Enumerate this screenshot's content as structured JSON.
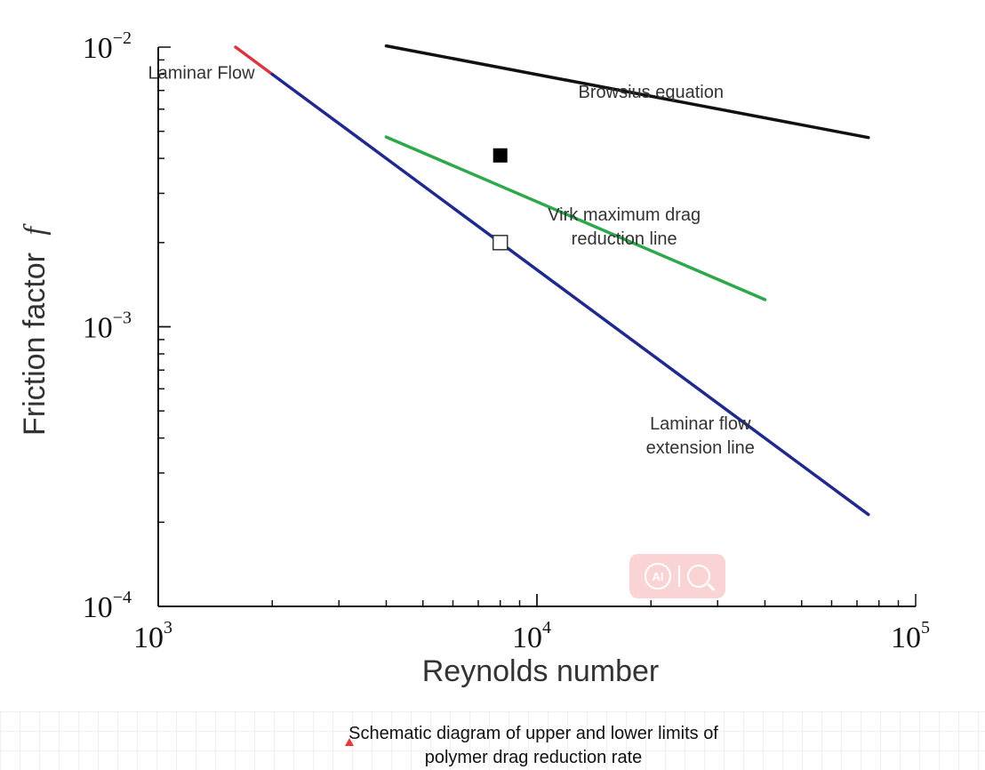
{
  "chart_data": {
    "type": "line",
    "title": "",
    "xlabel": "Reynolds number",
    "ylabel": "Friction factor",
    "ylabel_italic": "f",
    "x_scale": "log",
    "y_scale": "log",
    "xlim": [
      1000,
      100000
    ],
    "ylim": [
      0.0001,
      0.01
    ],
    "x_major_ticks": [
      {
        "value": 1000,
        "base": "10",
        "exp": "3"
      },
      {
        "value": 10000,
        "base": "10",
        "exp": "4"
      },
      {
        "value": 100000,
        "base": "10",
        "exp": "5"
      }
    ],
    "y_major_ticks": [
      {
        "value": 0.01,
        "base": "10",
        "exp": "−2"
      },
      {
        "value": 0.001,
        "base": "10",
        "exp": "−3"
      },
      {
        "value": 0.0001,
        "base": "10",
        "exp": "−4"
      }
    ],
    "grid": false,
    "series": [
      {
        "color": "#d9363e",
        "x": [
          1600,
          2000
        ],
        "y": [
          0.01,
          0.008
        ]
      },
      {
        "color": "#1f2a8c",
        "x": [
          2000,
          75000
        ],
        "y": [
          0.008,
          0.000213
        ]
      },
      {
        "color": "#2ea84a",
        "x": [
          4000,
          40000
        ],
        "y": [
          0.00477,
          0.00125
        ]
      },
      {
        "color": "#111111",
        "x": [
          4000,
          75000
        ],
        "y": [
          0.0101,
          0.00475
        ]
      }
    ],
    "markers": [
      {
        "shape": "square-filled",
        "x": 8000,
        "y": 0.0041,
        "color": "#000000"
      },
      {
        "shape": "square-open",
        "x": 8000,
        "y": 0.002,
        "color": "#333333"
      }
    ],
    "annotations": [
      {
        "lines": [
          "Laminar Flow"
        ],
        "x": 1300,
        "y": 0.0077
      },
      {
        "lines": [
          "Browsius equation"
        ],
        "x": 20000,
        "y": 0.0066
      },
      {
        "lines": [
          "Virk maximum drag",
          "reduction line"
        ],
        "x": 17000,
        "y": 0.0024
      },
      {
        "lines": [
          "Laminar flow",
          "extension line"
        ],
        "x": 27000,
        "y": 0.00043
      }
    ]
  },
  "caption": {
    "text": "Schematic diagram of upper and lower limits of polymer drag reduction rate"
  },
  "watermark": {
    "icon": "ai-search-icon",
    "text": "AI",
    "color": "#ee7878"
  }
}
